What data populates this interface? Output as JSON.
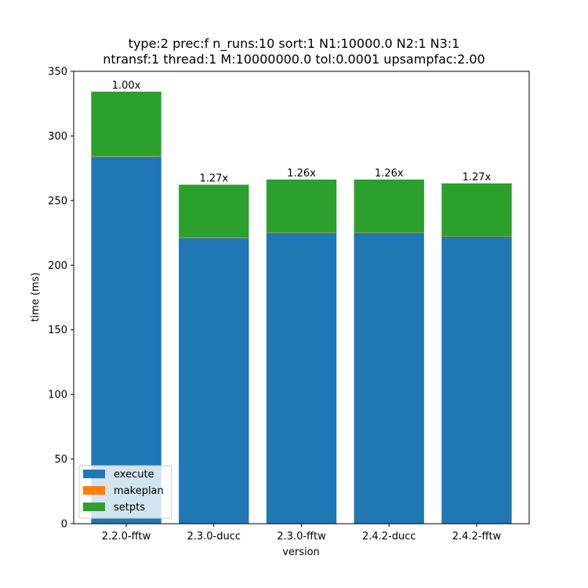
{
  "chart_data": {
    "type": "bar",
    "stacked": true,
    "title": "type:2 prec:f n_runs:10 sort:1 N1:10000.0 N2:1 N3:1\nntransf:1 thread:1 M:10000000.0 tol:0.0001 upsampfac:2.00",
    "title_lines": [
      "type:2 prec:f n_runs:10 sort:1 N1:10000.0 N2:1 N3:1",
      "ntransf:1 thread:1 M:10000000.0 tol:0.0001 upsampfac:2.00"
    ],
    "xlabel": "version",
    "ylabel": "time (ms)",
    "ylim": [
      0,
      350
    ],
    "yticks": [
      0,
      50,
      100,
      150,
      200,
      250,
      300,
      350
    ],
    "categories": [
      "2.2.0-fftw",
      "2.3.0-ducc",
      "2.3.0-fftw",
      "2.4.2-ducc",
      "2.4.2-fftw"
    ],
    "series": [
      {
        "name": "execute",
        "color": "#1f77b4",
        "values": [
          284,
          221,
          225,
          225,
          222
        ]
      },
      {
        "name": "makeplan",
        "color": "#ff7f0e",
        "values": [
          0.3,
          0.3,
          0.3,
          0.3,
          0.3
        ]
      },
      {
        "name": "setpts",
        "color": "#2ca02c",
        "values": [
          50,
          41,
          41,
          41,
          41
        ]
      }
    ],
    "bar_labels": [
      "1.00x",
      "1.27x",
      "1.26x",
      "1.26x",
      "1.27x"
    ],
    "legend": {
      "placement": "lower-left"
    },
    "grid": false
  }
}
